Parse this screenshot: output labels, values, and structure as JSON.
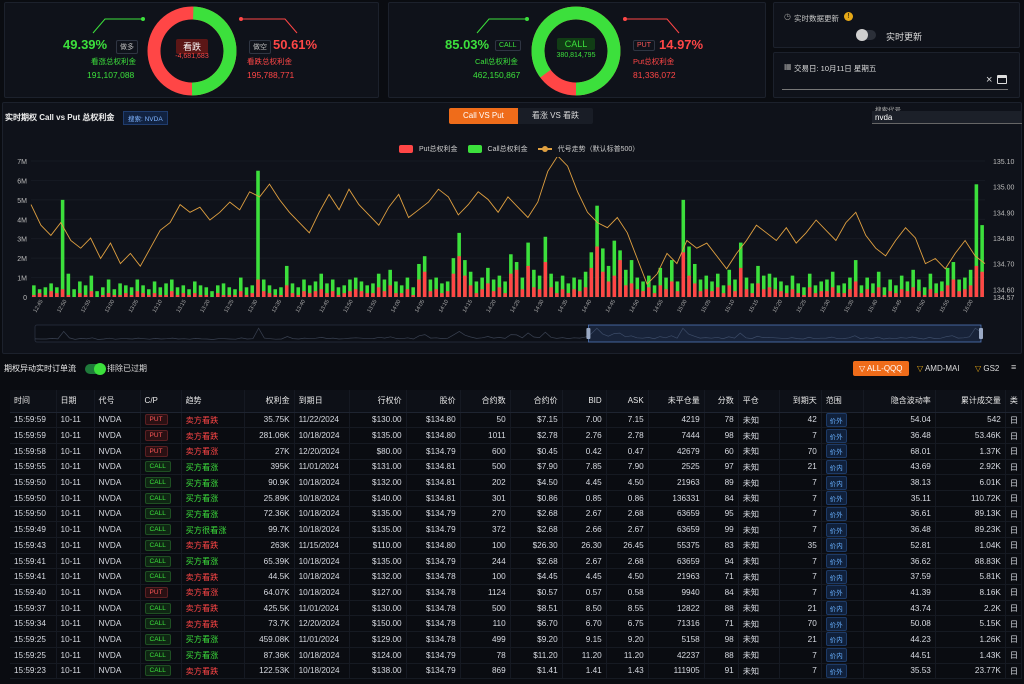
{
  "colors": {
    "green": "#3ce03c",
    "red": "#ff4646",
    "orange": "#ef6c1a",
    "price_line": "#e0a040"
  },
  "donut1": {
    "center_label": "看跌",
    "center_value": "-4,681,683",
    "bull_pct": "49.39%",
    "bull_tag": "做多",
    "bull_label": "看涨总权利金",
    "bull_amount": "191,107,088",
    "bear_pct": "50.61%",
    "bear_tag": "做空",
    "bear_label": "看跌总权利金",
    "bear_amount": "195,788,771",
    "bull_fraction": 0.4939
  },
  "donut2": {
    "center_label": "CALL",
    "center_value": "380,814,795",
    "call_pct": "85.03%",
    "call_tag": "CALL",
    "call_label": "Call总权利金",
    "call_amount": "462,150,867",
    "put_pct": "14.97%",
    "put_tag": "PUT",
    "put_label": "Put总权利金",
    "put_amount": "81,336,072",
    "call_fraction": 0.8503
  },
  "realtime": {
    "label": "实时数据更新",
    "toggle_label": "实时更新",
    "enabled": false
  },
  "tradedate": {
    "label": "交易日: 10月11日 星期五"
  },
  "chart_header": {
    "title": "实时期权 Call vs Put 总权利金",
    "search_tag": "搜索: NVDA",
    "tabs": [
      "Call VS Put",
      "看涨 VS 看跌"
    ],
    "search_label": "搜索代号",
    "search_value": "nvda"
  },
  "chart_data": {
    "type": "bar",
    "series": [
      {
        "name": "Put总权利金"
      },
      {
        "name": "Call总权利金"
      },
      {
        "name": "代号走势（默认标普500）"
      }
    ],
    "y_left_ticks": [
      "0",
      "1M",
      "2M",
      "3M",
      "4M",
      "5M",
      "6M",
      "7M"
    ],
    "y_right_ticks": [
      "134.57",
      "134.60",
      "134.70",
      "134.80",
      "134.90",
      "135.00",
      "135.10"
    ],
    "ylim_left": [
      0,
      7000000
    ],
    "ylim_right": [
      134.57,
      135.1
    ],
    "x_labels": [
      "12:45",
      "12:50",
      "12:55",
      "13:00",
      "13:05",
      "13:10",
      "13:15",
      "13:20",
      "13:25",
      "13:30",
      "13:35",
      "13:40",
      "13:45",
      "13:50",
      "13:55",
      "14:00",
      "14:05",
      "14:10",
      "14:15",
      "14:20",
      "14:25",
      "14:30",
      "14:35",
      "14:40",
      "14:45",
      "14:50",
      "14:55",
      "15:00",
      "15:05",
      "15:10",
      "15:15",
      "15:20",
      "15:25",
      "15:30",
      "15:35",
      "15:40",
      "15:45",
      "15:50",
      "15:55",
      "16:00"
    ],
    "call_values": [
      0.6,
      0.4,
      0.5,
      0.7,
      0.5,
      5.0,
      1.2,
      0.4,
      0.8,
      0.6,
      1.1,
      0.3,
      0.5,
      0.9,
      0.4,
      0.7,
      0.6,
      0.5,
      0.9,
      0.6,
      0.4,
      0.8,
      0.5,
      0.7,
      0.9,
      0.5,
      0.6,
      0.4,
      0.8,
      0.6,
      0.5,
      0.3,
      0.6,
      0.7,
      0.5,
      0.4,
      1.0,
      0.5,
      0.6,
      6.5,
      0.9,
      0.6,
      0.4,
      0.5,
      1.6,
      0.7,
      0.5,
      0.9,
      0.6,
      0.8,
      1.2,
      0.7,
      0.9,
      0.5,
      0.6,
      0.9,
      1.0,
      0.8,
      0.6,
      0.7,
      1.2,
      0.9,
      1.4,
      0.8,
      0.6,
      1.0,
      0.5,
      1.7,
      2.1,
      0.9,
      1.0,
      0.7,
      0.8,
      2.0,
      3.3,
      1.9,
      1.3,
      0.8,
      1.0,
      1.5,
      0.9,
      1.1,
      0.8,
      2.2,
      1.8,
      1.0,
      2.8,
      1.4,
      1.1,
      3.1,
      1.2,
      0.8,
      1.1,
      0.7,
      1.0,
      0.9,
      1.3,
      2.3,
      4.7,
      2.5,
      1.6,
      2.9,
      2.4,
      1.4,
      1.9,
      1.0,
      0.8,
      1.1,
      0.6,
      1.5,
      1.0,
      1.9,
      0.8,
      5.0,
      2.6,
      1.7,
      0.9,
      1.1,
      0.8,
      1.2,
      0.6,
      1.4,
      0.9,
      2.8,
      1.0,
      0.7,
      1.6,
      1.1,
      1.2,
      1.0,
      0.8,
      0.6,
      1.1,
      0.7,
      0.5,
      1.2,
      0.6,
      0.8,
      0.9,
      1.3,
      0.6,
      0.7,
      1.0,
      1.9,
      0.6,
      1.0,
      0.7,
      1.3,
      0.5,
      0.9,
      0.6,
      1.1,
      0.8,
      1.4,
      0.9,
      0.5,
      1.2,
      0.7,
      0.8,
      1.5,
      1.8,
      0.9,
      1.0,
      1.4,
      5.8,
      3.7
    ],
    "put_values": [
      0.1,
      0.2,
      0.1,
      0.3,
      0.2,
      0.4,
      0.1,
      0.0,
      0.2,
      0.1,
      0.3,
      0.0,
      0.1,
      0.2,
      0.1,
      0.1,
      0.2,
      0.1,
      0.3,
      0.2,
      0.1,
      0.2,
      0.1,
      0.1,
      0.3,
      0.1,
      0.2,
      0.1,
      0.2,
      0.1,
      0.1,
      0.0,
      0.2,
      0.1,
      0.1,
      0.1,
      0.3,
      0.1,
      0.2,
      0.9,
      0.3,
      0.2,
      0.1,
      0.1,
      0.6,
      0.2,
      0.1,
      0.3,
      0.2,
      0.3,
      0.4,
      0.2,
      0.3,
      0.1,
      0.2,
      0.3,
      0.4,
      0.3,
      0.2,
      0.2,
      0.5,
      0.3,
      0.6,
      0.2,
      0.2,
      0.4,
      0.1,
      0.9,
      1.3,
      0.3,
      0.4,
      0.2,
      0.3,
      1.2,
      2.1,
      1.1,
      0.6,
      0.2,
      0.4,
      0.7,
      0.3,
      0.5,
      0.2,
      1.2,
      1.4,
      0.4,
      1.6,
      0.5,
      0.4,
      1.8,
      0.5,
      0.2,
      0.4,
      0.2,
      0.4,
      0.3,
      0.5,
      1.5,
      2.6,
      1.3,
      0.8,
      1.1,
      1.9,
      0.6,
      0.7,
      0.4,
      0.3,
      0.5,
      0.2,
      0.6,
      0.4,
      0.8,
      0.3,
      2.3,
      1.1,
      0.7,
      0.3,
      0.4,
      0.3,
      0.5,
      0.2,
      0.6,
      0.3,
      1.5,
      0.4,
      0.2,
      0.7,
      0.4,
      0.5,
      0.4,
      0.3,
      0.2,
      0.4,
      0.2,
      0.1,
      0.5,
      0.2,
      0.3,
      0.3,
      0.5,
      0.2,
      0.2,
      0.4,
      0.8,
      0.2,
      0.4,
      0.2,
      0.5,
      0.1,
      0.3,
      0.2,
      0.4,
      0.3,
      0.5,
      0.3,
      0.1,
      0.4,
      0.2,
      0.3,
      0.6,
      0.9,
      0.3,
      0.4,
      0.6,
      1.6,
      1.3
    ],
    "price_values": [
      134.93,
      134.85,
      134.81,
      134.86,
      134.79,
      134.76,
      134.8,
      134.72,
      134.78,
      134.7,
      134.74,
      134.69,
      134.76,
      134.83,
      134.86,
      134.93,
      134.9,
      134.92,
      134.87,
      134.9,
      134.94,
      134.91,
      134.98,
      134.96,
      135.01,
      134.95,
      134.9,
      134.86,
      134.82,
      134.9,
      134.97,
      134.91,
      134.99,
      134.93,
      134.89,
      134.85,
      134.92,
      134.97,
      134.88,
      134.91,
      134.94,
      134.99,
      134.96,
      134.89,
      134.93,
      134.98,
      134.95,
      134.9,
      134.96,
      134.92,
      134.88,
      134.94,
      135.06,
      135.12,
      135.08,
      134.98,
      134.9,
      134.86,
      134.84,
      134.88,
      134.82,
      134.72,
      134.62,
      134.66,
      134.74,
      134.7,
      134.79,
      134.76,
      134.78,
      134.73,
      134.68,
      134.74,
      134.79,
      134.85,
      134.82,
      134.79,
      134.84,
      134.78,
      134.82,
      134.87,
      134.83,
      134.79,
      134.86,
      134.9,
      134.81,
      134.76,
      134.73,
      134.79,
      134.84,
      134.8,
      134.7,
      134.72,
      134.68,
      134.74,
      134.79,
      134.73,
      134.7
    ]
  },
  "table": {
    "title": "期权异动实时订单流",
    "toggle_label": "排除已过期",
    "filters": [
      "ALL-QQQ",
      "AMD-MAI",
      "GS2"
    ],
    "headers": [
      "时间",
      "日期",
      "代号",
      "C/P",
      "趋势",
      "权利金",
      "到期日",
      "行权价",
      "股价",
      "合约数",
      "合约价",
      "BID",
      "ASK",
      "未平仓量",
      "分数",
      "平仓",
      "到期天",
      "范围",
      "隐含波动率",
      "累计成交量",
      "类"
    ],
    "rows": [
      [
        "15:59:59",
        "10-11",
        "NVDA",
        "PUT",
        "卖方看跌",
        "35.75K",
        "11/22/2024",
        "$130.00",
        "$134.80",
        "50",
        "$7.15",
        "7.00",
        "7.15",
        "4219",
        "78",
        "未知",
        "42",
        "价外",
        "54.04",
        "542",
        "日"
      ],
      [
        "15:59:59",
        "10-11",
        "NVDA",
        "PUT",
        "卖方看跌",
        "281.06K",
        "10/18/2024",
        "$135.00",
        "$134.80",
        "1011",
        "$2.78",
        "2.76",
        "2.78",
        "7444",
        "98",
        "未知",
        "7",
        "价外",
        "36.48",
        "53.46K",
        "日"
      ],
      [
        "15:59:58",
        "10-11",
        "NVDA",
        "PUT",
        "卖方看涨",
        "27K",
        "12/20/2024",
        "$80.00",
        "$134.79",
        "600",
        "$0.45",
        "0.42",
        "0.47",
        "42679",
        "60",
        "未知",
        "70",
        "价外",
        "68.01",
        "1.37K",
        "日"
      ],
      [
        "15:59:55",
        "10-11",
        "NVDA",
        "CALL",
        "买方看涨",
        "395K",
        "11/01/2024",
        "$131.00",
        "$134.81",
        "500",
        "$7.90",
        "7.85",
        "7.90",
        "2525",
        "97",
        "未知",
        "21",
        "价内",
        "43.69",
        "2.92K",
        "日"
      ],
      [
        "15:59:50",
        "10-11",
        "NVDA",
        "CALL",
        "买方看涨",
        "90.9K",
        "10/18/2024",
        "$132.00",
        "$134.81",
        "202",
        "$4.50",
        "4.45",
        "4.50",
        "21963",
        "89",
        "未知",
        "7",
        "价内",
        "38.13",
        "6.01K",
        "日"
      ],
      [
        "15:59:50",
        "10-11",
        "NVDA",
        "CALL",
        "买方看涨",
        "25.89K",
        "10/18/2024",
        "$140.00",
        "$134.81",
        "301",
        "$0.86",
        "0.85",
        "0.86",
        "136331",
        "84",
        "未知",
        "7",
        "价外",
        "35.11",
        "110.72K",
        "日"
      ],
      [
        "15:59:50",
        "10-11",
        "NVDA",
        "CALL",
        "买方看涨",
        "72.36K",
        "10/18/2024",
        "$135.00",
        "$134.79",
        "270",
        "$2.68",
        "2.67",
        "2.68",
        "63659",
        "95",
        "未知",
        "7",
        "价外",
        "36.61",
        "89.13K",
        "日"
      ],
      [
        "15:59:49",
        "10-11",
        "NVDA",
        "CALL",
        "买方很看涨",
        "99.7K",
        "10/18/2024",
        "$135.00",
        "$134.79",
        "372",
        "$2.68",
        "2.66",
        "2.67",
        "63659",
        "99",
        "未知",
        "7",
        "价外",
        "36.48",
        "89.23K",
        "日"
      ],
      [
        "15:59:43",
        "10-11",
        "NVDA",
        "CALL",
        "卖方看跌",
        "263K",
        "11/15/2024",
        "$110.00",
        "$134.80",
        "100",
        "$26.30",
        "26.30",
        "26.45",
        "55375",
        "83",
        "未知",
        "35",
        "价内",
        "52.81",
        "1.04K",
        "日"
      ],
      [
        "15:59:41",
        "10-11",
        "NVDA",
        "CALL",
        "买方看涨",
        "65.39K",
        "10/18/2024",
        "$135.00",
        "$134.79",
        "244",
        "$2.68",
        "2.67",
        "2.68",
        "63659",
        "94",
        "未知",
        "7",
        "价外",
        "36.62",
        "88.83K",
        "日"
      ],
      [
        "15:59:41",
        "10-11",
        "NVDA",
        "CALL",
        "卖方看跌",
        "44.5K",
        "10/18/2024",
        "$132.00",
        "$134.78",
        "100",
        "$4.45",
        "4.45",
        "4.50",
        "21963",
        "71",
        "未知",
        "7",
        "价内",
        "37.59",
        "5.81K",
        "日"
      ],
      [
        "15:59:40",
        "10-11",
        "NVDA",
        "PUT",
        "卖方看涨",
        "64.07K",
        "10/18/2024",
        "$127.00",
        "$134.78",
        "1124",
        "$0.57",
        "0.57",
        "0.58",
        "9940",
        "84",
        "未知",
        "7",
        "价外",
        "41.39",
        "8.16K",
        "日"
      ],
      [
        "15:59:37",
        "10-11",
        "NVDA",
        "CALL",
        "卖方看跌",
        "425.5K",
        "11/01/2024",
        "$130.00",
        "$134.78",
        "500",
        "$8.51",
        "8.50",
        "8.55",
        "12822",
        "88",
        "未知",
        "21",
        "价内",
        "43.74",
        "2.2K",
        "日"
      ],
      [
        "15:59:34",
        "10-11",
        "NVDA",
        "CALL",
        "卖方看跌",
        "73.7K",
        "12/20/2024",
        "$150.00",
        "$134.78",
        "110",
        "$6.70",
        "6.70",
        "6.75",
        "71316",
        "71",
        "未知",
        "70",
        "价外",
        "50.08",
        "5.15K",
        "日"
      ],
      [
        "15:59:25",
        "10-11",
        "NVDA",
        "CALL",
        "买方看涨",
        "459.08K",
        "11/01/2024",
        "$129.00",
        "$134.78",
        "499",
        "$9.20",
        "9.15",
        "9.20",
        "5158",
        "98",
        "未知",
        "21",
        "价内",
        "44.23",
        "1.26K",
        "日"
      ],
      [
        "15:59:25",
        "10-11",
        "NVDA",
        "CALL",
        "买方看涨",
        "87.36K",
        "10/18/2024",
        "$124.00",
        "$134.79",
        "78",
        "$11.20",
        "11.20",
        "11.20",
        "42237",
        "88",
        "未知",
        "7",
        "价内",
        "44.51",
        "1.43K",
        "日"
      ],
      [
        "15:59:23",
        "10-11",
        "NVDA",
        "CALL",
        "卖方看跌",
        "122.53K",
        "10/18/2024",
        "$138.00",
        "$134.79",
        "869",
        "$1.41",
        "1.41",
        "1.43",
        "111905",
        "91",
        "未知",
        "7",
        "价外",
        "35.53",
        "23.77K",
        "日"
      ]
    ]
  }
}
